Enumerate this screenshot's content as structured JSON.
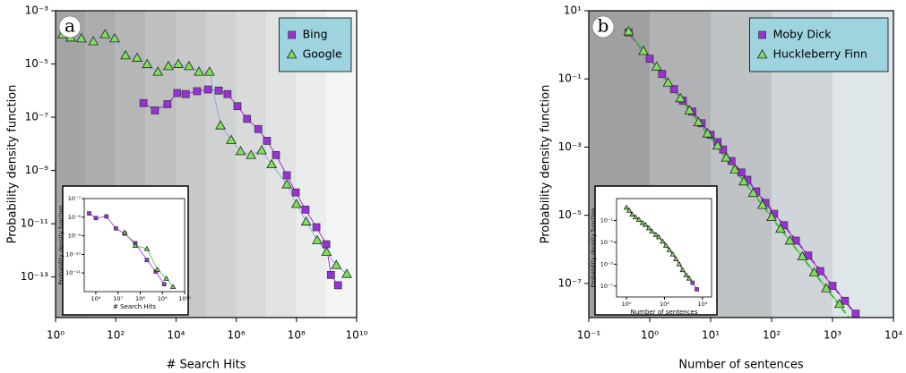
{
  "chart_data": [
    {
      "type": "scatter",
      "panel_label": "a",
      "x_label": "# Search Hits",
      "y_label": "Probability density function",
      "xscale": "log",
      "yscale": "log",
      "xlim": [
        1,
        10000000000
      ],
      "ylim": [
        3e-15,
        0.001
      ],
      "xticks": [
        {
          "value": 1,
          "label": "10⁰"
        },
        {
          "value": 100,
          "label": "10²"
        },
        {
          "value": 10000,
          "label": "10⁴"
        },
        {
          "value": 1000000,
          "label": "10⁶"
        },
        {
          "value": 100000000,
          "label": "10⁸"
        },
        {
          "value": 10000000000,
          "label": "10¹⁰"
        }
      ],
      "yticks": [
        {
          "value": 0.001,
          "label": "10⁻³"
        },
        {
          "value": 1e-05,
          "label": "10⁻⁵"
        },
        {
          "value": 1e-07,
          "label": "10⁻⁷"
        },
        {
          "value": 1e-09,
          "label": "10⁻⁹"
        },
        {
          "value": 1e-11,
          "label": "10⁻¹¹"
        },
        {
          "value": 1e-13,
          "label": "10⁻¹³"
        }
      ],
      "band_colors": [
        "#a4a4a4",
        "#f3f6f5"
      ],
      "legend": "upper right",
      "legend_color": "#9ed3e0",
      "series": [
        {
          "name": "Bing",
          "color": "#9b30d9",
          "marker": "square",
          "line_color": "#9b30d9",
          "x": [
            830,
            2000,
            5200,
            11000,
            21000,
            50000,
            115000,
            263000,
            513000,
            1100000,
            2300000,
            5400000,
            10500000,
            21000000,
            48000000,
            95000000,
            200000000,
            460000000,
            980000000,
            1400000000,
            2400000000
          ],
          "values": [
            3.4e-07,
            1.8e-07,
            3.1e-07,
            8.1e-07,
            7.4e-07,
            9.5e-07,
            1.1e-06,
            1e-06,
            7.4e-07,
            2.6e-07,
            8.7e-08,
            3.6e-08,
            1.3e-08,
            3.8e-09,
            6.6e-10,
            1.5e-10,
            3.4e-11,
            7.4e-12,
            1.7e-12,
            1.2e-13,
            4.9e-14
          ]
        },
        {
          "name": "Google",
          "color": "#7ee05a",
          "marker": "triangle",
          "line_color": "#8fa9e3",
          "x": [
            1.7,
            3.2,
            7.2,
            18,
            44,
            92,
            210,
            510,
            1100,
            2500,
            5600,
            12000,
            27000,
            58000,
            130000,
            300000,
            680000,
            1400000,
            3100000,
            7000000,
            15000000,
            48000000,
            100000000,
            210000000,
            490000000,
            1000000000,
            2100000000,
            4700000000
          ],
          "values": [
            0.00013,
            9.8e-05,
            9.1e-05,
            7.1e-05,
            0.00013,
            9.1e-05,
            2.1e-05,
            1.7e-05,
            9.8e-06,
            5.1e-06,
            8.3e-06,
            1e-05,
            8.3e-06,
            5.1e-06,
            5.1e-06,
            4.9e-08,
            1.4e-08,
            5.3e-09,
            3.8e-09,
            5.7e-09,
            1.7e-09,
            3e-10,
            5.5e-11,
            1.2e-11,
            2.4e-12,
            8.7e-13,
            2.8e-13,
            1.3e-13
          ]
        }
      ],
      "inset": {
        "x_label": "# Search Hits",
        "y_label": "Probability density function",
        "xlim": [
          300000,
          10000000000
        ],
        "ylim": [
          1e-12,
          1e-07
        ],
        "xticks": [
          {
            "value": 1000000,
            "label": "10⁶"
          },
          {
            "value": 10000000,
            "label": "10⁷"
          },
          {
            "value": 100000000,
            "label": "10⁸"
          },
          {
            "value": 1000000000,
            "label": "10⁹"
          },
          {
            "value": 10000000000,
            "label": "10¹⁰"
          }
        ],
        "yticks": [
          {
            "value": 1e-07,
            "label": "10⁻⁷"
          },
          {
            "value": 1e-08,
            "label": "10⁻⁸"
          },
          {
            "value": 1e-09,
            "label": "10⁻⁹"
          },
          {
            "value": 1e-10,
            "label": "10⁻¹⁰"
          },
          {
            "value": 1e-11,
            "label": "10⁻¹¹"
          }
        ],
        "series": [
          {
            "color": "#9b30d9",
            "marker": "square",
            "line_color": "#9b30d9",
            "x": [
              500000,
              1000000,
              3000000,
              8000000,
              20000000,
              60000000,
              200000000,
              500000000,
              1200000000
            ],
            "values": [
              1.6e-08,
              9e-09,
              1.1e-08,
              2.5e-09,
              1.3e-09,
              4e-10,
              5e-11,
              1.2e-11,
              2.5e-12
            ]
          },
          {
            "color": "#7ee05a",
            "marker": "triangle",
            "line_color": "#3cc23c",
            "x": [
              20000000,
              60000000,
              200000000,
              600000000,
              1500000000,
              3000000000
            ],
            "values": [
              1.5e-09,
              3e-10,
              2e-10,
              1.5e-11,
              5e-12,
              1.8e-12
            ]
          }
        ]
      }
    },
    {
      "type": "scatter",
      "panel_label": "b",
      "x_label": "Number of sentences",
      "y_label": "Probability density function",
      "xscale": "log",
      "yscale": "log",
      "xlim": [
        0.1,
        10000
      ],
      "ylim": [
        1e-08,
        10
      ],
      "xticks": [
        {
          "value": 0.1,
          "label": "10⁻¹"
        },
        {
          "value": 1,
          "label": "10⁰"
        },
        {
          "value": 10,
          "label": "10¹"
        },
        {
          "value": 100,
          "label": "10²"
        },
        {
          "value": 1000,
          "label": "10³"
        },
        {
          "value": 10000,
          "label": "10⁴"
        }
      ],
      "yticks": [
        {
          "value": 10,
          "label": "10¹"
        },
        {
          "value": 0.1,
          "label": "10⁻¹"
        },
        {
          "value": 0.001,
          "label": "10⁻³"
        },
        {
          "value": 1e-05,
          "label": "10⁻⁵"
        },
        {
          "value": 1e-07,
          "label": "10⁻⁷"
        }
      ],
      "band_colors": [
        "#a0a0a0",
        "#dfe6ea"
      ],
      "legend": "upper right",
      "legend_color": "#9ed3e0",
      "series": [
        {
          "name": "Moby Dick",
          "color": "#9b30d9",
          "marker": "square",
          "line_color": "#9b30d9",
          "x": [
            0.45,
            1,
            1.6,
            2.5,
            3.5,
            5,
            7.1,
            10,
            13,
            16,
            22,
            32,
            40,
            56,
            79,
            110,
            160,
            250,
            400,
            630,
            1000,
            1600,
            2400
          ],
          "values": [
            2.3,
            0.39,
            0.14,
            0.05,
            0.023,
            0.011,
            0.005,
            0.0023,
            0.0014,
            0.00085,
            0.00039,
            0.00018,
            0.00011,
            5e-05,
            2.3e-05,
            1.1e-05,
            5.1e-06,
            1.8e-06,
            6.6e-07,
            2.3e-07,
            8.5e-08,
            3.1e-08,
            1.3e-08
          ]
        },
        {
          "name": "Huckleberry Finn",
          "color": "#7ee05a",
          "marker": "triangle",
          "line_color": "#3cc23c",
          "x": [
            0.45,
            0.79,
            1.3,
            2,
            3.2,
            4.5,
            6.3,
            8.9,
            13,
            18,
            25,
            35,
            50,
            71,
            100,
            140,
            200,
            320,
            500,
            790,
            1300
          ],
          "values": [
            2.5,
            0.66,
            0.23,
            0.078,
            0.027,
            0.012,
            0.0054,
            0.0025,
            0.0011,
            0.00049,
            0.00022,
            9.8e-05,
            4.5e-05,
            2e-05,
            8.9e-06,
            4e-06,
            1.8e-06,
            6.2e-07,
            2.1e-07,
            7.2e-08,
            2.5e-08
          ]
        }
      ],
      "fit_lines": [
        {
          "color": "#9b30d9",
          "x": [
            0.5,
            4000
          ],
          "values": [
            1.8,
            4e-09
          ]
        },
        {
          "color": "#3cc23c",
          "x": [
            0.5,
            3000
          ],
          "values": [
            1.9,
            3.3e-09
          ]
        }
      ],
      "inset": {
        "x_label": "Number of sentences",
        "y_label": "Probability density function",
        "xlim": [
          0.3,
          30000
        ],
        "ylim": [
          1e-08,
          10
        ],
        "xticks": [
          {
            "value": 1,
            "label": "10⁰"
          },
          {
            "value": 100,
            "label": "10²"
          },
          {
            "value": 10000,
            "label": "10⁴"
          }
        ],
        "yticks": [
          {
            "value": 0.1,
            "label": "10⁻¹"
          },
          {
            "value": 0.001,
            "label": "10⁻³"
          },
          {
            "value": 1e-05,
            "label": "10⁻⁵"
          },
          {
            "value": 1e-07,
            "label": "10⁻⁷"
          }
        ],
        "series": [
          {
            "color": "#7ee05a",
            "marker": "triangle",
            "line_color": "#222222",
            "x": [
              1,
              1.4,
              2,
              3,
              4.5,
              7,
              10,
              15,
              22,
              35,
              50,
              80,
              120,
              180,
              270,
              400,
              600,
              900,
              1400,
              2000
            ],
            "values": [
              1.5,
              0.8,
              0.35,
              0.2,
              0.12,
              0.06,
              0.04,
              0.02,
              0.01,
              0.005,
              0.003,
              0.0012,
              0.0005,
              0.0002,
              8e-05,
              3e-05,
              1e-05,
              3e-06,
              1e-06,
              5e-07
            ]
          },
          {
            "color": "#9b30d9",
            "marker": "square",
            "line_color": "#9b30d9",
            "x": [
              3000,
              5000
            ],
            "values": [
              2e-07,
              5e-08
            ]
          }
        ]
      }
    }
  ]
}
